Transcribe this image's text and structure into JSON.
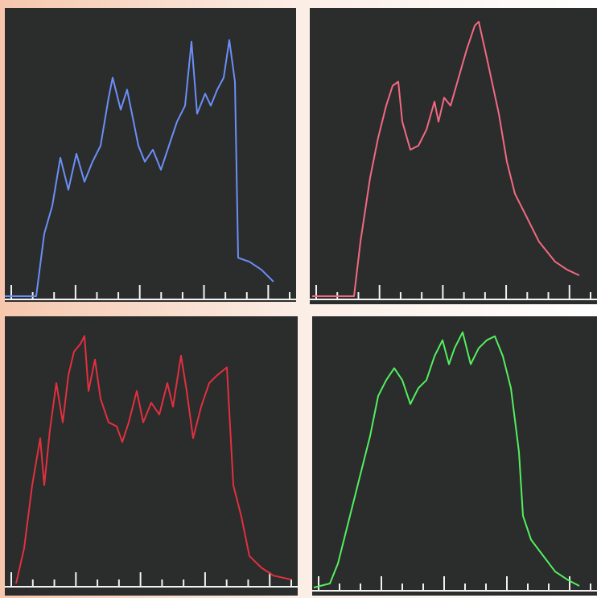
{
  "chart_data": [
    {
      "type": "line",
      "color": "#6b8ff7",
      "xlim": [
        0,
        362
      ],
      "ylim": [
        0,
        360
      ],
      "x": [
        0,
        39,
        49,
        59,
        69,
        79,
        89,
        99,
        109,
        119,
        129,
        134,
        144,
        152,
        159,
        166,
        174,
        184,
        194,
        204,
        214,
        224,
        232,
        239,
        249,
        256,
        264,
        272,
        279,
        286,
        290,
        304,
        319,
        334
      ],
      "values": [
        0,
        0,
        78,
        113,
        173,
        133,
        178,
        143,
        168,
        188,
        248,
        273,
        233,
        258,
        223,
        188,
        168,
        183,
        158,
        188,
        218,
        238,
        318,
        228,
        253,
        238,
        258,
        273,
        320,
        268,
        48,
        43,
        33,
        18
      ]
    },
    {
      "type": "line",
      "color": "#f26a82",
      "xlim": [
        0,
        357
      ],
      "ylim": [
        0,
        360
      ],
      "x": [
        3,
        55,
        63,
        75,
        85,
        95,
        103,
        110,
        115,
        125,
        135,
        145,
        155,
        160,
        167,
        175,
        185,
        195,
        205,
        210,
        220,
        235,
        245,
        255,
        270,
        285,
        305,
        320,
        335
      ],
      "values": [
        0,
        0,
        68,
        148,
        198,
        238,
        263,
        268,
        218,
        183,
        188,
        208,
        243,
        218,
        248,
        238,
        273,
        308,
        338,
        343,
        298,
        228,
        168,
        128,
        98,
        68,
        43,
        33,
        26
      ]
    },
    {
      "type": "line",
      "color": "#e2303f",
      "xlim": [
        0,
        364
      ],
      "ylim": [
        0,
        340
      ],
      "x": [
        14,
        24,
        34,
        44,
        49,
        56,
        64,
        72,
        79,
        86,
        94,
        99,
        104,
        112,
        119,
        129,
        139,
        146,
        154,
        164,
        172,
        182,
        192,
        202,
        209,
        219,
        226,
        234,
        244,
        254,
        264,
        276,
        284,
        294,
        304,
        319,
        334,
        356
      ],
      "values": [
        0,
        45,
        125,
        185,
        125,
        195,
        255,
        205,
        265,
        295,
        305,
        315,
        245,
        285,
        235,
        205,
        200,
        180,
        205,
        245,
        205,
        230,
        215,
        255,
        225,
        290,
        245,
        185,
        225,
        255,
        265,
        275,
        125,
        85,
        35,
        20,
        10,
        5
      ]
    },
    {
      "type": "line",
      "color": "#52f05e",
      "xlim": [
        0,
        354
      ],
      "ylim": [
        0,
        340
      ],
      "x": [
        2,
        22,
        32,
        42,
        52,
        62,
        72,
        82,
        92,
        102,
        112,
        122,
        132,
        142,
        152,
        162,
        170,
        177,
        187,
        197,
        207,
        217,
        227,
        237,
        247,
        257,
        262,
        272,
        287,
        302,
        317,
        332
      ],
      "values": [
        0,
        5,
        30,
        70,
        110,
        150,
        190,
        240,
        260,
        275,
        260,
        230,
        250,
        260,
        290,
        310,
        280,
        300,
        320,
        280,
        300,
        310,
        315,
        290,
        250,
        170,
        90,
        60,
        40,
        20,
        10,
        2
      ]
    }
  ]
}
